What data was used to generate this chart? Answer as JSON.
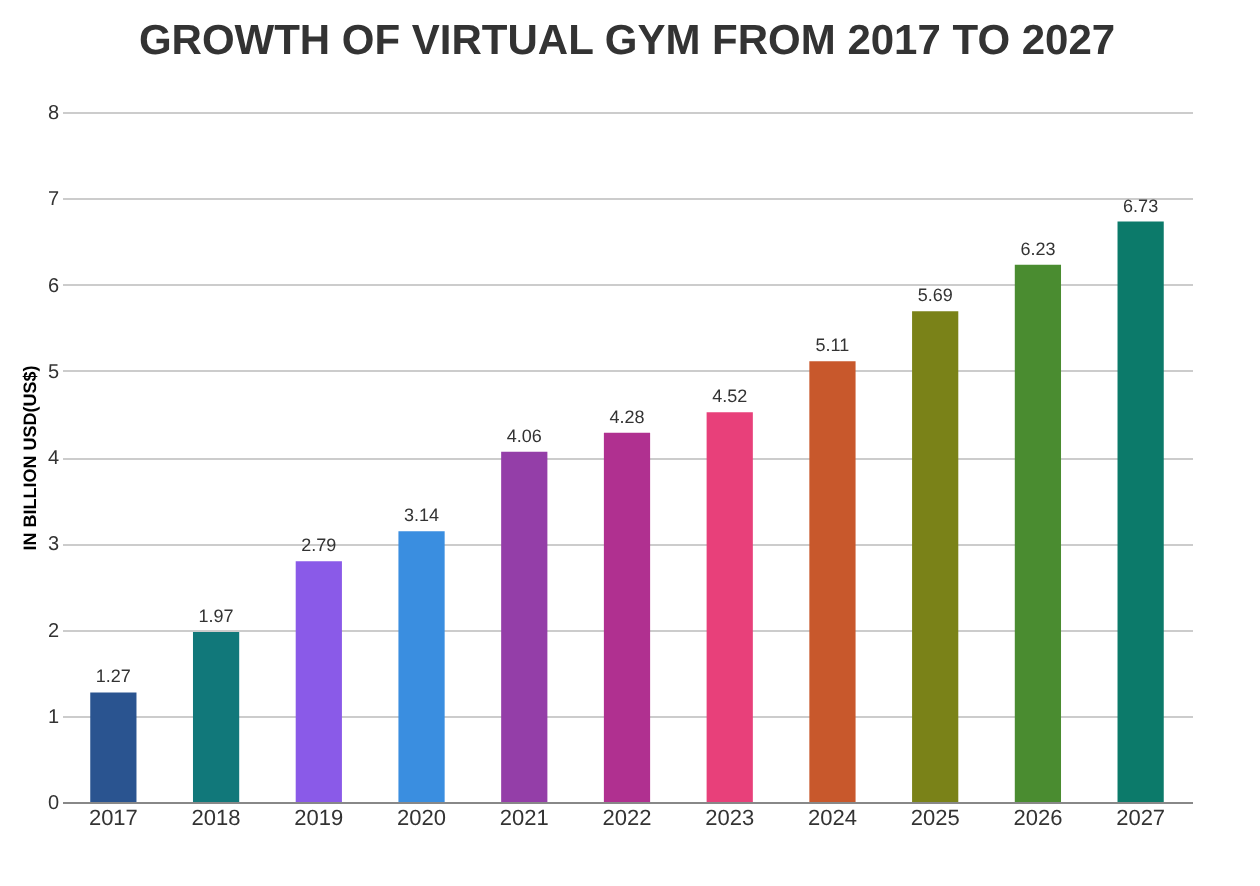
{
  "chart_data": {
    "type": "bar",
    "title": "GROWTH OF VIRTUAL GYM FROM 2017 TO 2027",
    "ylabel": "IN BILLION USD(US$)",
    "categories": [
      "2017",
      "2018",
      "2019",
      "2020",
      "2021",
      "2022",
      "2023",
      "2024",
      "2025",
      "2026",
      "2027"
    ],
    "values": [
      1.27,
      1.97,
      2.79,
      3.14,
      4.06,
      4.28,
      4.52,
      5.11,
      5.69,
      6.23,
      6.73
    ],
    "colors": [
      "#2a5490",
      "#11787a",
      "#8a5ae8",
      "#3a8ee0",
      "#943ea8",
      "#b03090",
      "#e8407a",
      "#c8582c",
      "#7a8218",
      "#4a8c30",
      "#0c7a6a"
    ],
    "ylim": [
      0,
      8
    ],
    "yticks": [
      0,
      1,
      2,
      3,
      4,
      5,
      6,
      7,
      8
    ],
    "grid": "y",
    "data_labels": true
  }
}
